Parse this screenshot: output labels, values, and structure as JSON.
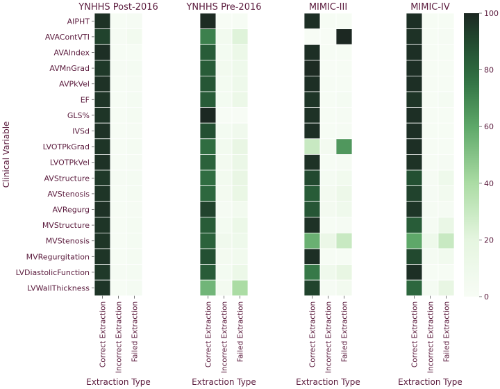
{
  "chart_data": {
    "type": "heatmap",
    "ylabel": "Clinical Variable",
    "xlabel": "Extraction Type",
    "columns": [
      "Correct Extraction",
      "Incorrect Extraction",
      "Failed Extraction"
    ],
    "rows": [
      "AIPHT",
      "AVAContVTI",
      "AVAIndex",
      "AVMnGrad",
      "AVPkVel",
      "EF",
      "GLS%",
      "IVSd",
      "LVOTPkGrad",
      "LVOTPkVel",
      "AVStructure",
      "AVStenosis",
      "AVRegurg",
      "MVStructure",
      "MVStenosis",
      "MVRegurgitation",
      "LVDiastolicFunction",
      "LVWallThickness"
    ],
    "colorbar": {
      "min": 0,
      "max": 100,
      "ticks": [
        0,
        20,
        40,
        60,
        80,
        100
      ]
    },
    "panels": [
      {
        "title": "YNHHS Post-2016",
        "values": [
          [
            97,
            1,
            2
          ],
          [
            92,
            2,
            6
          ],
          [
            98,
            1,
            1
          ],
          [
            95,
            2,
            3
          ],
          [
            97,
            1,
            2
          ],
          [
            96,
            1,
            3
          ],
          [
            96,
            1,
            3
          ],
          [
            97,
            1,
            2
          ],
          [
            96,
            1,
            3
          ],
          [
            97,
            1,
            2
          ],
          [
            95,
            2,
            3
          ],
          [
            96,
            1,
            3
          ],
          [
            97,
            1,
            2
          ],
          [
            96,
            1,
            3
          ],
          [
            96,
            1,
            3
          ],
          [
            96,
            1,
            3
          ],
          [
            95,
            2,
            3
          ],
          [
            96,
            1,
            3
          ]
        ]
      },
      {
        "title": "YNHHS Pre-2016",
        "values": [
          [
            99,
            0,
            1
          ],
          [
            72,
            6,
            22
          ],
          [
            84,
            4,
            12
          ],
          [
            84,
            6,
            10
          ],
          [
            86,
            4,
            10
          ],
          [
            84,
            4,
            12
          ],
          [
            100,
            0,
            0
          ],
          [
            88,
            4,
            8
          ],
          [
            78,
            6,
            16
          ],
          [
            82,
            5,
            13
          ],
          [
            78,
            6,
            16
          ],
          [
            80,
            5,
            15
          ],
          [
            92,
            2,
            6
          ],
          [
            84,
            4,
            12
          ],
          [
            82,
            8,
            10
          ],
          [
            88,
            5,
            7
          ],
          [
            84,
            4,
            12
          ],
          [
            55,
            5,
            40
          ]
        ]
      },
      {
        "title": "MIMIC-III",
        "values": [
          [
            98,
            1,
            1
          ],
          [
            0,
            0,
            100
          ],
          [
            98,
            1,
            1
          ],
          [
            99,
            0,
            1
          ],
          [
            98,
            1,
            1
          ],
          [
            96,
            1,
            3
          ],
          [
            97,
            1,
            2
          ],
          [
            98,
            1,
            2
          ],
          [
            30,
            5,
            65
          ],
          [
            97,
            1,
            2
          ],
          [
            90,
            3,
            7
          ],
          [
            84,
            5,
            11
          ],
          [
            86,
            5,
            9
          ],
          [
            97,
            1,
            2
          ],
          [
            57,
            13,
            30
          ],
          [
            98,
            1,
            1
          ],
          [
            74,
            9,
            17
          ],
          [
            92,
            2,
            6
          ]
        ]
      },
      {
        "title": "MIMIC-IV",
        "values": [
          [
            98,
            1,
            1
          ],
          [
            97,
            1,
            2
          ],
          [
            98,
            1,
            1
          ],
          [
            98,
            1,
            1
          ],
          [
            98,
            1,
            1
          ],
          [
            96,
            1,
            3
          ],
          [
            98,
            1,
            1
          ],
          [
            98,
            1,
            1
          ],
          [
            98,
            1,
            1
          ],
          [
            97,
            1,
            2
          ],
          [
            88,
            2,
            10
          ],
          [
            92,
            2,
            6
          ],
          [
            96,
            2,
            2
          ],
          [
            84,
            2,
            14
          ],
          [
            60,
            10,
            30
          ],
          [
            90,
            3,
            7
          ],
          [
            98,
            1,
            1
          ],
          [
            80,
            3,
            17
          ]
        ]
      }
    ]
  }
}
